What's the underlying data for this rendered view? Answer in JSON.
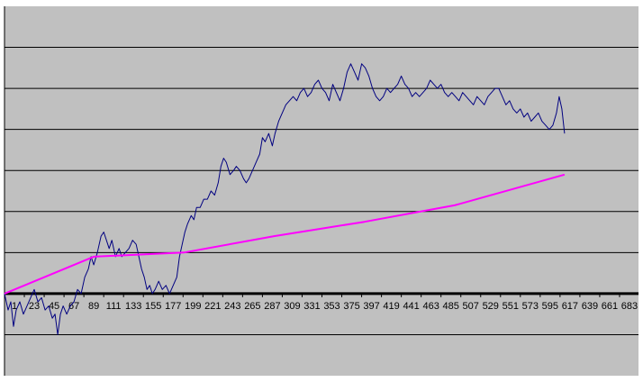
{
  "chart_data": {
    "type": "line",
    "title": "",
    "xlabel": "",
    "ylabel": "",
    "x_tick_labels": [
      1,
      23,
      45,
      67,
      89,
      111,
      133,
      155,
      177,
      199,
      221,
      243,
      265,
      287,
      309,
      331,
      353,
      375,
      397,
      419,
      441,
      463,
      485,
      507,
      529,
      551,
      573,
      595,
      617,
      639,
      661,
      683
    ],
    "xlim": [
      1,
      704
    ],
    "ylim": [
      -2,
      7
    ],
    "y_grid_step": 1,
    "grid": true,
    "legend": "none",
    "series": [
      {
        "color": "#000080",
        "points": [
          [
            1,
            0.0
          ],
          [
            5,
            -0.4
          ],
          [
            8,
            -0.2
          ],
          [
            11,
            -0.8
          ],
          [
            14,
            -0.4
          ],
          [
            18,
            -0.2
          ],
          [
            22,
            -0.5
          ],
          [
            26,
            -0.3
          ],
          [
            30,
            -0.1
          ],
          [
            34,
            0.1
          ],
          [
            38,
            -0.2
          ],
          [
            42,
            -0.1
          ],
          [
            46,
            -0.4
          ],
          [
            50,
            -0.3
          ],
          [
            54,
            -0.6
          ],
          [
            57,
            -0.5
          ],
          [
            60,
            -1.0
          ],
          [
            63,
            -0.5
          ],
          [
            66,
            -0.3
          ],
          [
            70,
            -0.5
          ],
          [
            74,
            -0.3
          ],
          [
            78,
            -0.2
          ],
          [
            82,
            0.1
          ],
          [
            86,
            0.0
          ],
          [
            90,
            0.4
          ],
          [
            94,
            0.6
          ],
          [
            97,
            0.9
          ],
          [
            100,
            0.7
          ],
          [
            104,
            1.0
          ],
          [
            108,
            1.4
          ],
          [
            111,
            1.5
          ],
          [
            114,
            1.3
          ],
          [
            117,
            1.1
          ],
          [
            120,
            1.3
          ],
          [
            124,
            0.9
          ],
          [
            128,
            1.1
          ],
          [
            131,
            0.9
          ],
          [
            135,
            1.0
          ],
          [
            139,
            1.1
          ],
          [
            143,
            1.3
          ],
          [
            147,
            1.2
          ],
          [
            150,
            0.9
          ],
          [
            153,
            0.6
          ],
          [
            156,
            0.4
          ],
          [
            159,
            0.1
          ],
          [
            162,
            0.2
          ],
          [
            165,
            0.0
          ],
          [
            168,
            0.1
          ],
          [
            172,
            0.3
          ],
          [
            176,
            0.1
          ],
          [
            180,
            0.2
          ],
          [
            184,
            0.0
          ],
          [
            188,
            0.2
          ],
          [
            192,
            0.4
          ],
          [
            195,
            0.9
          ],
          [
            198,
            1.2
          ],
          [
            201,
            1.5
          ],
          [
            204,
            1.7
          ],
          [
            208,
            1.9
          ],
          [
            211,
            1.8
          ],
          [
            214,
            2.1
          ],
          [
            218,
            2.1
          ],
          [
            222,
            2.3
          ],
          [
            226,
            2.3
          ],
          [
            230,
            2.5
          ],
          [
            234,
            2.4
          ],
          [
            238,
            2.7
          ],
          [
            241,
            3.1
          ],
          [
            244,
            3.3
          ],
          [
            247,
            3.2
          ],
          [
            251,
            2.9
          ],
          [
            255,
            3.0
          ],
          [
            258,
            3.1
          ],
          [
            262,
            3.0
          ],
          [
            266,
            2.8
          ],
          [
            269,
            2.7
          ],
          [
            272,
            2.8
          ],
          [
            276,
            3.0
          ],
          [
            280,
            3.2
          ],
          [
            284,
            3.4
          ],
          [
            287,
            3.8
          ],
          [
            290,
            3.7
          ],
          [
            294,
            3.9
          ],
          [
            298,
            3.6
          ],
          [
            301,
            3.9
          ],
          [
            305,
            4.2
          ],
          [
            309,
            4.4
          ],
          [
            313,
            4.6
          ],
          [
            317,
            4.7
          ],
          [
            321,
            4.8
          ],
          [
            325,
            4.7
          ],
          [
            329,
            4.9
          ],
          [
            333,
            5.0
          ],
          [
            337,
            4.8
          ],
          [
            341,
            4.9
          ],
          [
            345,
            5.1
          ],
          [
            349,
            5.2
          ],
          [
            353,
            5.0
          ],
          [
            357,
            4.9
          ],
          [
            361,
            4.7
          ],
          [
            365,
            5.1
          ],
          [
            369,
            4.9
          ],
          [
            373,
            4.7
          ],
          [
            377,
            5.0
          ],
          [
            381,
            5.4
          ],
          [
            385,
            5.6
          ],
          [
            389,
            5.4
          ],
          [
            393,
            5.2
          ],
          [
            397,
            5.6
          ],
          [
            401,
            5.5
          ],
          [
            405,
            5.3
          ],
          [
            409,
            5.0
          ],
          [
            413,
            4.8
          ],
          [
            417,
            4.7
          ],
          [
            421,
            4.8
          ],
          [
            425,
            5.0
          ],
          [
            429,
            4.9
          ],
          [
            433,
            5.0
          ],
          [
            437,
            5.1
          ],
          [
            441,
            5.3
          ],
          [
            445,
            5.1
          ],
          [
            449,
            5.0
          ],
          [
            453,
            4.8
          ],
          [
            457,
            4.9
          ],
          [
            461,
            4.8
          ],
          [
            465,
            4.9
          ],
          [
            469,
            5.0
          ],
          [
            473,
            5.2
          ],
          [
            477,
            5.1
          ],
          [
            481,
            5.0
          ],
          [
            485,
            5.1
          ],
          [
            489,
            4.9
          ],
          [
            493,
            4.8
          ],
          [
            497,
            4.9
          ],
          [
            501,
            4.8
          ],
          [
            505,
            4.7
          ],
          [
            509,
            4.9
          ],
          [
            513,
            4.8
          ],
          [
            517,
            4.7
          ],
          [
            521,
            4.6
          ],
          [
            525,
            4.8
          ],
          [
            529,
            4.7
          ],
          [
            533,
            4.6
          ],
          [
            537,
            4.8
          ],
          [
            541,
            4.9
          ],
          [
            545,
            5.0
          ],
          [
            549,
            5.0
          ],
          [
            553,
            4.8
          ],
          [
            557,
            4.6
          ],
          [
            561,
            4.7
          ],
          [
            565,
            4.5
          ],
          [
            569,
            4.4
          ],
          [
            573,
            4.5
          ],
          [
            577,
            4.3
          ],
          [
            581,
            4.4
          ],
          [
            585,
            4.2
          ],
          [
            589,
            4.3
          ],
          [
            593,
            4.4
          ],
          [
            597,
            4.2
          ],
          [
            601,
            4.1
          ],
          [
            605,
            4.0
          ],
          [
            609,
            4.1
          ],
          [
            613,
            4.4
          ],
          [
            616,
            4.8
          ],
          [
            619,
            4.5
          ],
          [
            622,
            3.9
          ]
        ]
      },
      {
        "color": "#ff00ff",
        "points": [
          [
            1,
            0.0
          ],
          [
            100,
            0.9
          ],
          [
            200,
            1.0
          ],
          [
            300,
            1.4
          ],
          [
            400,
            1.75
          ],
          [
            500,
            2.15
          ],
          [
            622,
            2.9
          ]
        ]
      }
    ]
  }
}
